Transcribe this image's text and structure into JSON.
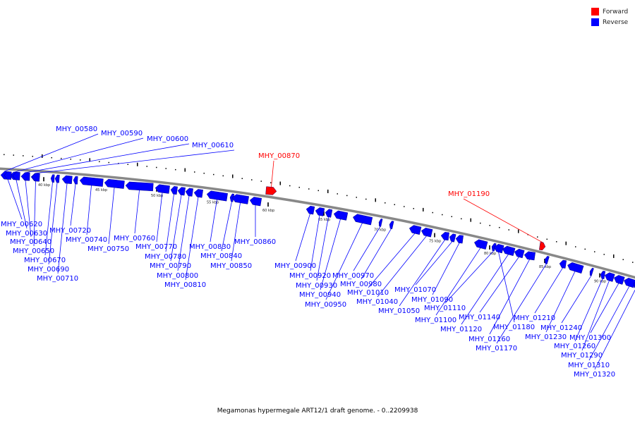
{
  "caption": "Megamonas hypermegale ART12/1 draft genome. - 0..2209938",
  "legend": {
    "forward": {
      "label": "Forward",
      "color": "#ff0000"
    },
    "reverse": {
      "label": "Reverse",
      "color": "#0000ff"
    }
  },
  "colors": {
    "backbone": "#888888",
    "tick": "#000000"
  },
  "kbp_labels": [
    {
      "text": "40 kbp",
      "kbp": 40
    },
    {
      "text": "45 kbp",
      "kbp": 45
    },
    {
      "text": "50 kbp",
      "kbp": 50
    },
    {
      "text": "55 kbp",
      "kbp": 55
    },
    {
      "text": "60 kbp",
      "kbp": 60
    },
    {
      "text": "65 kbp",
      "kbp": 65
    },
    {
      "text": "70 kbp",
      "kbp": 70
    },
    {
      "text": "75 kbp",
      "kbp": 75
    },
    {
      "text": "80 kbp",
      "kbp": 80
    },
    {
      "text": "85 kbp",
      "kbp": 85
    },
    {
      "text": "90 kbp",
      "kbp": 90
    }
  ],
  "genes": [
    {
      "label": "MHY_00580",
      "strand": "reverse"
    },
    {
      "label": "MHY_00590",
      "strand": "reverse"
    },
    {
      "label": "MHY_00600",
      "strand": "reverse"
    },
    {
      "label": "MHY_00610",
      "strand": "reverse"
    },
    {
      "label": "MHY_00620",
      "strand": "reverse"
    },
    {
      "label": "MHY_00630",
      "strand": "reverse"
    },
    {
      "label": "MHY_00640",
      "strand": "reverse"
    },
    {
      "label": "MHY_00650",
      "strand": "reverse"
    },
    {
      "label": "MHY_00670",
      "strand": "reverse"
    },
    {
      "label": "MHY_00690",
      "strand": "reverse"
    },
    {
      "label": "MHY_00710",
      "strand": "reverse"
    },
    {
      "label": "MHY_00720",
      "strand": "reverse"
    },
    {
      "label": "MHY_00740",
      "strand": "reverse"
    },
    {
      "label": "MHY_00750",
      "strand": "reverse"
    },
    {
      "label": "MHY_00760",
      "strand": "reverse"
    },
    {
      "label": "MHY_00770",
      "strand": "reverse"
    },
    {
      "label": "MHY_00780",
      "strand": "reverse"
    },
    {
      "label": "MHY_00790",
      "strand": "reverse"
    },
    {
      "label": "MHY_00800",
      "strand": "reverse"
    },
    {
      "label": "MHY_00810",
      "strand": "reverse"
    },
    {
      "label": "MHY_00830",
      "strand": "reverse"
    },
    {
      "label": "MHY_00840",
      "strand": "reverse"
    },
    {
      "label": "MHY_00850",
      "strand": "reverse"
    },
    {
      "label": "MHY_00860",
      "strand": "reverse"
    },
    {
      "label": "MHY_00870",
      "strand": "forward"
    },
    {
      "label": "MHY_00900",
      "strand": "reverse"
    },
    {
      "label": "MHY_00920",
      "strand": "reverse"
    },
    {
      "label": "MHY_00930",
      "strand": "reverse"
    },
    {
      "label": "MHY_00940",
      "strand": "reverse"
    },
    {
      "label": "MHY_00950",
      "strand": "reverse"
    },
    {
      "label": "MHY_00970",
      "strand": "reverse"
    },
    {
      "label": "MHY_00980",
      "strand": "reverse"
    },
    {
      "label": "MHY_01010",
      "strand": "reverse"
    },
    {
      "label": "MHY_01040",
      "strand": "reverse"
    },
    {
      "label": "MHY_01050",
      "strand": "reverse"
    },
    {
      "label": "MHY_01070",
      "strand": "reverse"
    },
    {
      "label": "MHY_01090",
      "strand": "reverse"
    },
    {
      "label": "MHY_01100",
      "strand": "reverse"
    },
    {
      "label": "MHY_01110",
      "strand": "reverse"
    },
    {
      "label": "MHY_01120",
      "strand": "reverse"
    },
    {
      "label": "MHY_01140",
      "strand": "reverse"
    },
    {
      "label": "MHY_01160",
      "strand": "reverse"
    },
    {
      "label": "MHY_01170",
      "strand": "reverse"
    },
    {
      "label": "MHY_01180",
      "strand": "reverse"
    },
    {
      "label": "MHY_01190",
      "strand": "forward"
    },
    {
      "label": "MHY_01210",
      "strand": "reverse"
    },
    {
      "label": "MHY_01230",
      "strand": "reverse"
    },
    {
      "label": "MHY_01240",
      "strand": "reverse"
    },
    {
      "label": "MHY_01260",
      "strand": "reverse"
    },
    {
      "label": "MHY_01290",
      "strand": "reverse"
    },
    {
      "label": "MHY_01300",
      "strand": "reverse"
    },
    {
      "label": "MHY_01310",
      "strand": "reverse"
    },
    {
      "label": "MHY_01320",
      "strand": "reverse"
    }
  ]
}
